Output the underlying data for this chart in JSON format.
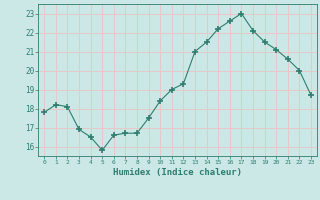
{
  "x": [
    0,
    1,
    2,
    3,
    4,
    5,
    6,
    7,
    8,
    9,
    10,
    11,
    12,
    13,
    14,
    15,
    16,
    17,
    18,
    19,
    20,
    21,
    22,
    23
  ],
  "y": [
    17.8,
    18.2,
    18.1,
    16.9,
    16.5,
    15.8,
    16.6,
    16.7,
    16.7,
    17.5,
    18.4,
    19.0,
    19.3,
    21.0,
    21.5,
    22.2,
    22.6,
    23.0,
    22.1,
    21.5,
    21.1,
    20.6,
    20.0,
    18.7
  ],
  "xlabel": "Humidex (Indice chaleur)",
  "xlim": [
    -0.5,
    23.5
  ],
  "ylim": [
    15.5,
    23.5
  ],
  "yticks": [
    16,
    17,
    18,
    19,
    20,
    21,
    22,
    23
  ],
  "xticks": [
    0,
    1,
    2,
    3,
    4,
    5,
    6,
    7,
    8,
    9,
    10,
    11,
    12,
    13,
    14,
    15,
    16,
    17,
    18,
    19,
    20,
    21,
    22,
    23
  ],
  "line_color": "#2e7d6e",
  "marker_color": "#2e7d6e",
  "bg_color": "#cce8e6",
  "grid_color": "#e8c8c8",
  "axes_color": "#2e7d6e",
  "tick_color": "#2e7d6e",
  "label_color": "#2e7d6e"
}
